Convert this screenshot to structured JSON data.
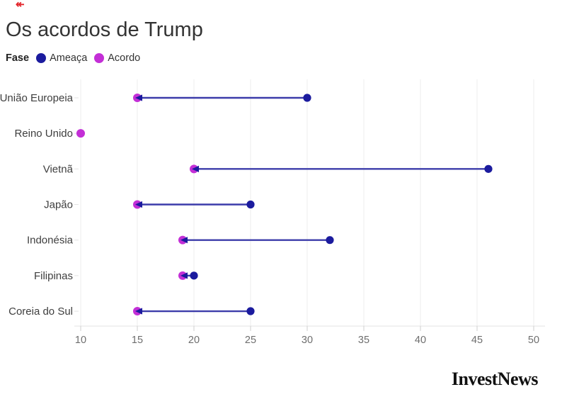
{
  "decoration": {
    "red_mark_glyph": "↞"
  },
  "header": {
    "title": "Os acordos de Trump"
  },
  "legend": {
    "title": "Fase",
    "items": [
      {
        "label": "Ameaça",
        "color": "#1b1b9e"
      },
      {
        "label": "Acordo",
        "color": "#c32fd6"
      }
    ]
  },
  "chart_data": {
    "type": "arrow",
    "orientation": "horizontal",
    "title": "Os acordos de Trump",
    "legend_title": "Fase",
    "legend_position": "top",
    "grid": true,
    "categories": [
      "União Europeia",
      "Reino Unido",
      "Vietnã",
      "Japão",
      "Indonésia",
      "Filipinas",
      "Coreia do Sul"
    ],
    "series": [
      {
        "name": "Ameaça",
        "color": "#1b1b9e",
        "values": [
          30,
          null,
          46,
          25,
          32,
          20,
          25
        ]
      },
      {
        "name": "Acordo",
        "color": "#c32fd6",
        "values": [
          15,
          10,
          20,
          15,
          19,
          19,
          15
        ]
      }
    ],
    "arrow_direction": "from Ameaça to Acordo",
    "xlim": [
      10,
      50
    ],
    "x_ticks": [
      10,
      15,
      20,
      25,
      30,
      35,
      40,
      45,
      50
    ],
    "xlabel": "",
    "ylabel": "",
    "colors": {
      "threat_dot": "#1b1b9e",
      "deal_dot": "#c32fd6",
      "arrow_line": "#3c3caa",
      "gridline": "#ededed",
      "axis_line": "#e3e3e3",
      "tick_mark": "#cfcfcf"
    }
  },
  "footer": {
    "logo": "InvestNews"
  }
}
